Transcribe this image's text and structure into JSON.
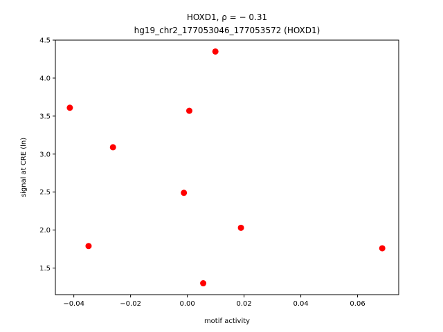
{
  "chart_data": {
    "type": "scatter",
    "title_line1": "HOXD1, ρ = − 0.31",
    "title_line2": "hg19_chr2_177053046_177053572 (HOXD1)",
    "xlabel": "motif activity",
    "ylabel": "signal at CRE (ln)",
    "xlim": [
      -0.0465,
      0.0745
    ],
    "ylim": [
      1.15,
      4.5
    ],
    "xticks": [
      -0.04,
      -0.02,
      0.0,
      0.02,
      0.04,
      0.06
    ],
    "xtick_labels": [
      "−0.04",
      "−0.02",
      "0.00",
      "0.02",
      "0.04",
      "0.06"
    ],
    "yticks": [
      1.5,
      2.0,
      2.5,
      3.0,
      3.5,
      4.0,
      4.5
    ],
    "ytick_labels": [
      "1.5",
      "2.0",
      "2.5",
      "3.0",
      "3.5",
      "4.0",
      "4.5"
    ],
    "marker_color": "#ff0000",
    "grid": false,
    "points": [
      {
        "x": -0.0414,
        "y": 3.61
      },
      {
        "x": -0.0348,
        "y": 1.79
      },
      {
        "x": -0.0262,
        "y": 3.09
      },
      {
        "x": -0.0012,
        "y": 2.49
      },
      {
        "x": 0.0007,
        "y": 3.57
      },
      {
        "x": 0.0056,
        "y": 1.3
      },
      {
        "x": 0.0099,
        "y": 4.35
      },
      {
        "x": 0.0189,
        "y": 2.03
      },
      {
        "x": 0.0687,
        "y": 1.76
      }
    ]
  }
}
